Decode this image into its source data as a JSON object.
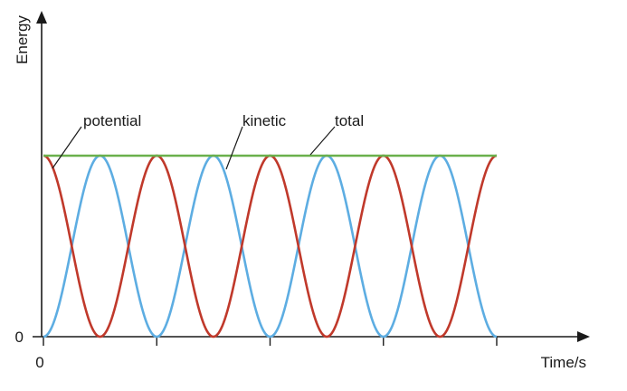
{
  "chart_data": {
    "type": "line",
    "title": "",
    "xlabel": "Time/s",
    "ylabel": "Energy",
    "x_ticks": [
      0,
      2,
      4,
      6,
      8
    ],
    "x_tick_labels": [
      "0",
      "",
      "",
      "",
      ""
    ],
    "y_tick_labels": [
      "0"
    ],
    "xlim": [
      0,
      8.4
    ],
    "ylim": [
      0,
      1.7
    ],
    "grid": false,
    "legend": "none",
    "annotations": [
      "potential",
      "kinetic",
      "total"
    ],
    "series": [
      {
        "name": "potential",
        "color": "#c0392b",
        "x": [
          0,
          0.25,
          0.5,
          0.75,
          1,
          1.25,
          1.5,
          1.75,
          2,
          2.25,
          2.5,
          2.75,
          3,
          3.25,
          3.5,
          3.75,
          4,
          4.25,
          4.5,
          4.75,
          5,
          5.25,
          5.5,
          5.75,
          6,
          6.25,
          6.5,
          6.75,
          7,
          7.25,
          7.5,
          7.75,
          8
        ],
        "y": [
          1,
          0.5,
          0,
          0.5,
          1,
          0.5,
          0,
          0.5,
          1,
          0.5,
          0,
          0.5,
          1,
          0.5,
          0,
          0.5,
          1,
          0.5,
          0,
          0.5,
          1,
          0.5,
          0,
          0.5,
          1,
          0.5,
          0,
          0.5,
          1,
          0.5,
          0,
          0.5,
          1
        ]
      },
      {
        "name": "kinetic",
        "color": "#5dade2",
        "x": [
          0,
          0.25,
          0.5,
          0.75,
          1,
          1.25,
          1.5,
          1.75,
          2,
          2.25,
          2.5,
          2.75,
          3,
          3.25,
          3.5,
          3.75,
          4,
          4.25,
          4.5,
          4.75,
          5,
          5.25,
          5.5,
          5.75,
          6,
          6.25,
          6.5,
          6.75,
          7,
          7.25,
          7.5,
          7.75,
          8
        ],
        "y": [
          0,
          0.5,
          1,
          0.5,
          0,
          0.5,
          1,
          0.5,
          0,
          0.5,
          1,
          0.5,
          0,
          0.5,
          1,
          0.5,
          0,
          0.5,
          1,
          0.5,
          0,
          0.5,
          1,
          0.5,
          0,
          0.5,
          1,
          0.5,
          0,
          0.5,
          1,
          0.5,
          0
        ]
      },
      {
        "name": "total",
        "color": "#6ab04c",
        "x": [
          0,
          8
        ],
        "y": [
          1,
          1
        ]
      }
    ]
  }
}
